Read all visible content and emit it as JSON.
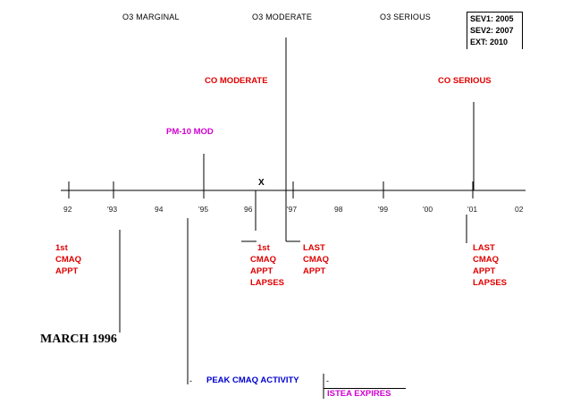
{
  "top_labels": {
    "o3_marginal": "O3 MARGINAL",
    "o3_moderate": "O3 MODERATE",
    "o3_serious": "O3 SERIOUS"
  },
  "sev_box": {
    "sev1": "SEV1: 2005",
    "sev2": "SEV2: 2007",
    "ext": "EXT:   2010"
  },
  "upper_events": {
    "co_moderate": "CO MODERATE",
    "co_serious": "CO SERIOUS",
    "pm10_mod": "PM-10 MOD",
    "x_mark": "X"
  },
  "ticks": [
    "92",
    "'93",
    "94",
    "'95",
    "96",
    "'97",
    "98",
    "'99",
    "'00",
    "'01",
    "02"
  ],
  "lower_events": {
    "first_appt": [
      "1st",
      "CMAQ",
      "APPT"
    ],
    "first_appt_lapses": [
      "1st",
      "CMAQ",
      "APPT",
      "LAPSES"
    ],
    "last_appt": [
      "LAST",
      "CMAQ",
      "APPT"
    ],
    "last_appt_lapses": [
      "LAST",
      "CMAQ",
      "APPT",
      "LAPSES"
    ]
  },
  "march_1996": "MARCH 1996",
  "peak_cmaq": "PEAK CMAQ ACTIVITY",
  "istea_expires": "ISTEA EXPIRES",
  "colors": {
    "red": "#e00000",
    "magenta": "#d000d0",
    "blue": "#0000d0"
  }
}
